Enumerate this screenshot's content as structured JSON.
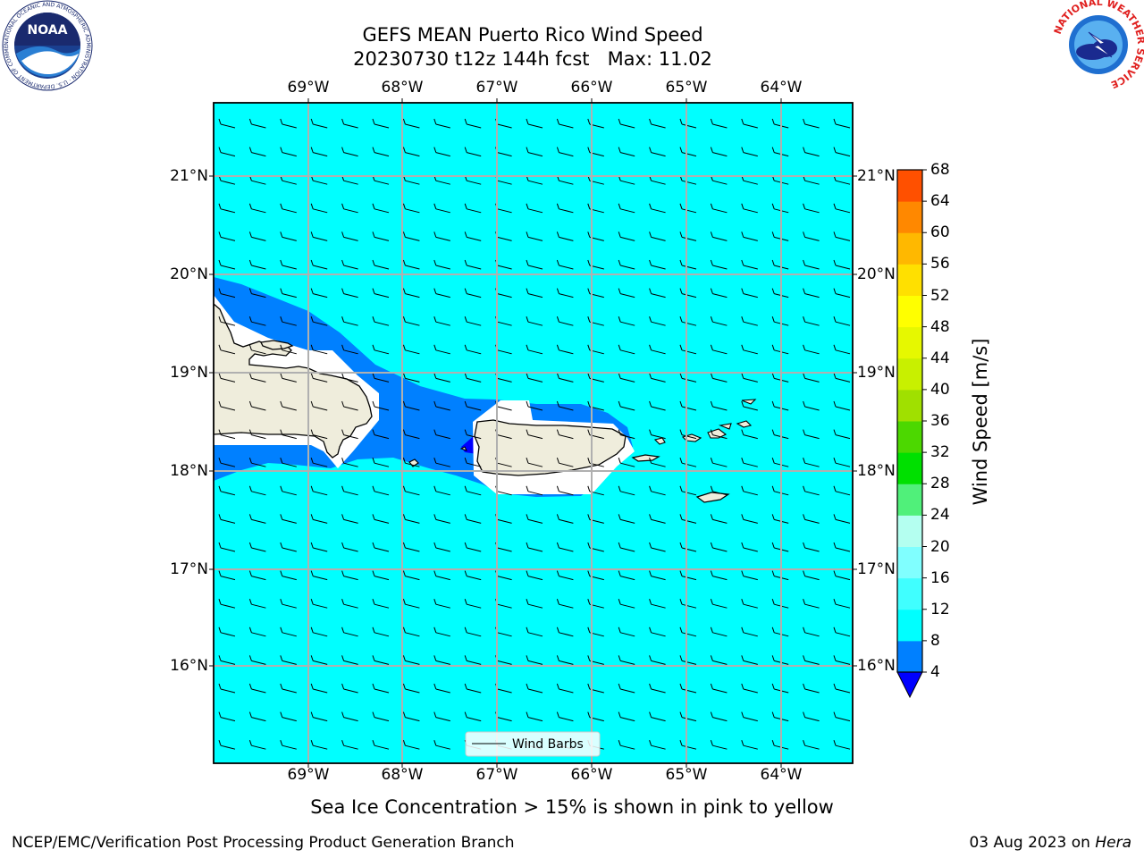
{
  "header": {
    "title_line1": "GEFS MEAN Puerto Rico Wind Speed",
    "title_line2": "20230730 t12z 144h fcst   Max: 11.02"
  },
  "map": {
    "x_tick_labels": [
      "69°W",
      "68°W",
      "67°W",
      "66°W",
      "65°W",
      "64°W"
    ],
    "y_tick_labels": [
      "21°N",
      "20°N",
      "19°N",
      "18°N",
      "17°N",
      "16°N"
    ],
    "legend_label": "Wind Barbs",
    "colors": {
      "ocean_fill": "#00ffff",
      "band_4_8": "#0080ff",
      "below_4": "#0000ff",
      "land": "#efeddc",
      "grid": "#b0b0b0"
    }
  },
  "colorbar": {
    "title": "Wind Speed [m/s]",
    "tick_labels": [
      "68",
      "64",
      "60",
      "56",
      "52",
      "48",
      "44",
      "40",
      "36",
      "32",
      "28",
      "24",
      "20",
      "16",
      "12",
      "8",
      "4"
    ],
    "colors_low_to_high": [
      "#0080ff",
      "#00ffff",
      "#40ffff",
      "#80ffff",
      "#b4fff0",
      "#50f07a",
      "#00e000",
      "#4cd800",
      "#a0e000",
      "#c8f000",
      "#e6f800",
      "#ffff00",
      "#ffe000",
      "#ffb800",
      "#ff8800",
      "#ff5000",
      "#ff2000",
      "#ff0000"
    ],
    "under_color": "#0000ff"
  },
  "subtitle": "Sea Ice Concentration > 15% is shown in pink to yellow",
  "footer": {
    "left": "NCEP/EMC/Verification Post Processing Product Generation Branch",
    "date": "03 Aug 2023 on ",
    "machine": "Hera"
  },
  "logos": {
    "noaa_text": "NOAA",
    "noaa_ring_text": "NATIONAL OCEANIC AND ATMOSPHERIC ADMINISTRATION · U.S. DEPARTMENT OF COMMERCE",
    "nws_ring_text": "NATIONAL WEATHER SERVICE"
  }
}
